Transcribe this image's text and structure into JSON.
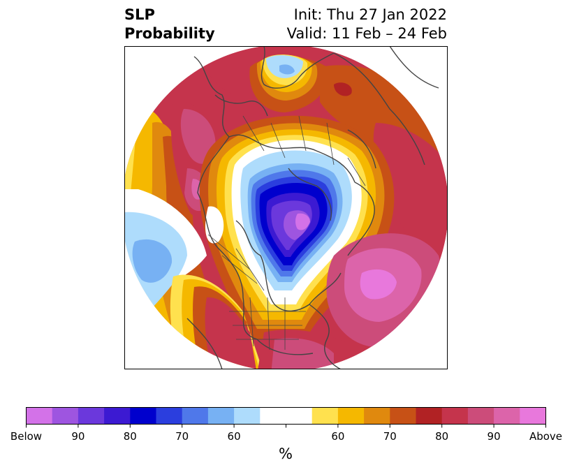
{
  "title": {
    "line1": "SLP",
    "line2": "Probability",
    "init": "Init: Thu 27 Jan 2022",
    "valid": "Valid: 11 Feb – 24 Feb"
  },
  "colorbar": {
    "unit": "%",
    "colors": [
      "#d372e8",
      "#9e55e0",
      "#6b38dc",
      "#3c1ad2",
      "#0000cd",
      "#2b3ede",
      "#4f78ea",
      "#77b1f3",
      "#aedcfc",
      "#ffffff",
      "#ffffff",
      "#ffe14e",
      "#f5b800",
      "#e0890e",
      "#c75116",
      "#b12224",
      "#c5344c",
      "#cc4c7a",
      "#dc64aa",
      "#e878dc"
    ],
    "tick_labels": [
      "Below",
      "90",
      "80",
      "70",
      "60",
      "",
      "60",
      "70",
      "80",
      "90",
      "Above"
    ]
  },
  "map_colors": {
    "above_95": "#e878dc",
    "above_90": "#dc64aa",
    "above_85": "#cc4c7a",
    "above_80": "#c5344c",
    "above_75": "#b12224",
    "above_70": "#c75116",
    "above_65": "#e0890e",
    "above_60": "#f5b800",
    "above_55": "#ffe14e",
    "neutral": "#ffffff",
    "below_55": "#aedcfc",
    "below_60": "#77b1f3",
    "below_65": "#4f78ea",
    "below_70": "#2b3ede",
    "below_75": "#0000cd",
    "below_80": "#3c1ad2",
    "below_85": "#6b38dc",
    "below_90": "#9e55e0",
    "below_95": "#d372e8",
    "coast": "#444444"
  }
}
